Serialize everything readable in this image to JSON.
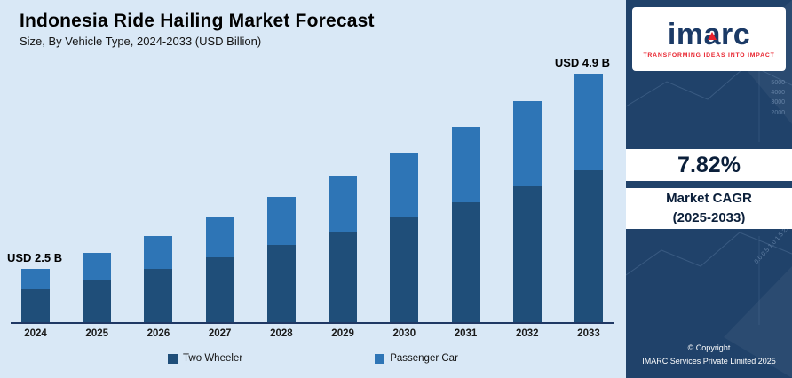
{
  "chart_data": {
    "type": "bar",
    "stacked": true,
    "title": "Indonesia Ride Hailing Market Forecast",
    "subtitle": "Size, By Vehicle Type, 2024-2033 (USD Billion)",
    "unit": "USD Billion",
    "categories": [
      "2024",
      "2025",
      "2026",
      "2027",
      "2028",
      "2029",
      "2030",
      "2031",
      "2032",
      "2033"
    ],
    "series": [
      {
        "name": "Two Wheeler",
        "color": "#1f4e79",
        "values": [
          1.55,
          1.67,
          1.79,
          1.93,
          2.08,
          2.24,
          2.42,
          2.61,
          2.81,
          3.0
        ]
      },
      {
        "name": "Passenger Car",
        "color": "#2e75b6",
        "values": [
          0.95,
          1.03,
          1.11,
          1.2,
          1.3,
          1.4,
          1.51,
          1.63,
          1.75,
          1.9
        ]
      }
    ],
    "totals": [
      2.5,
      2.7,
      2.9,
      3.13,
      3.38,
      3.64,
      3.93,
      4.24,
      4.56,
      4.9
    ],
    "annotations": [
      {
        "index": 0,
        "label": "USD 2.5 B"
      },
      {
        "index": 9,
        "label": "USD 4.9 B"
      }
    ],
    "legend_position": "bottom",
    "y_axis_visible": false,
    "xlabel": "",
    "ylabel": ""
  },
  "sidebar": {
    "logo": {
      "part1": "im",
      "part2": "a",
      "part3": "rc",
      "tagline": "TRANSFORMING IDEAS INTO IMPACT"
    },
    "cagr_value": "7.82%",
    "cagr_label_line1": "Market CAGR",
    "cagr_label_line2": "(2025-2033)",
    "copyright_line1": "© Copyright",
    "copyright_line2": "IMARC Services Private Limited 2025",
    "watermark_numbers_vertical": "5000 4000 3000 2000",
    "watermark_numbers_diagonal": "0.0  0.5  1.0  1.5  2.0"
  },
  "colors": {
    "chart_background": "#d9e8f6",
    "panel_background": "#20426a",
    "two_wheeler": "#1f4e79",
    "passenger_car": "#2e75b6",
    "accent_red": "#e8222d",
    "axis": "#1f3864"
  }
}
